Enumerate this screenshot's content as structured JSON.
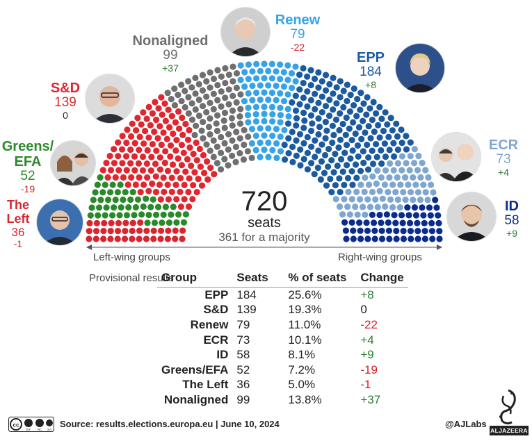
{
  "chart_data": {
    "type": "parliament",
    "total_seats": 720,
    "total_label": "720",
    "seats_label": "seats",
    "majority_label": "361 for a majority",
    "left_label": "Left-wing groups",
    "right_label": "Right-wing groups",
    "groups_ordered_left_to_right": [
      {
        "name": "The Left",
        "seats": 36,
        "change": "-1",
        "color": "#d7262f"
      },
      {
        "name": "Greens/EFA",
        "seats": 52,
        "change": "-19",
        "color": "#2a8a2a"
      },
      {
        "name": "S&D",
        "seats": 139,
        "change": "0",
        "color": "#e0262f"
      },
      {
        "name": "Nonaligned",
        "seats": 99,
        "change": "+37",
        "color": "#6f6f6f"
      },
      {
        "name": "Renew",
        "seats": 79,
        "change": "-22",
        "color": "#37a3e6"
      },
      {
        "name": "EPP",
        "seats": 184,
        "change": "+8",
        "color": "#1c5aa0"
      },
      {
        "name": "ECR",
        "seats": 73,
        "change": "+4",
        "color": "#7ea6cf"
      },
      {
        "name": "ID",
        "seats": 58,
        "change": "+9",
        "color": "#0a2c8c"
      }
    ]
  },
  "labels": {
    "nonaligned": {
      "name": "Nonaligned",
      "seats": "99",
      "change": "+37"
    },
    "renew": {
      "name": "Renew",
      "seats": "79",
      "change": "-22"
    },
    "epp": {
      "name": "EPP",
      "seats": "184",
      "change": "+8"
    },
    "sd": {
      "name": "S&D",
      "seats": "139",
      "change": "0"
    },
    "greens_1": "Greens/",
    "greens_2": "EFA",
    "greens_seats": "52",
    "greens_change": "-19",
    "left_1": "The",
    "left_2": "Left",
    "left_seats": "36",
    "left_change": "-1",
    "ecr": {
      "name": "ECR",
      "seats": "73",
      "change": "+4"
    },
    "id": {
      "name": "ID",
      "seats": "58",
      "change": "+9"
    }
  },
  "table": {
    "caption": "Provisional results",
    "headers": [
      "Group",
      "Seats",
      "% of seats",
      "Change"
    ],
    "rows": [
      {
        "group": "EPP",
        "seats": "184",
        "pct": "25.6%",
        "change": "+8",
        "tone": "pos"
      },
      {
        "group": "S&D",
        "seats": "139",
        "pct": "19.3%",
        "change": "0",
        "tone": "zero"
      },
      {
        "group": "Renew",
        "seats": "79",
        "pct": "11.0%",
        "change": "-22",
        "tone": "neg"
      },
      {
        "group": "ECR",
        "seats": "73",
        "pct": "10.1%",
        "change": "+4",
        "tone": "pos"
      },
      {
        "group": "ID",
        "seats": "58",
        "pct": "8.1%",
        "change": "+9",
        "tone": "pos"
      },
      {
        "group": "Greens/EFA",
        "seats": "52",
        "pct": "7.2%",
        "change": "-19",
        "tone": "neg"
      },
      {
        "group": "The Left",
        "seats": "36",
        "pct": "5.0%",
        "change": "-1",
        "tone": "neg"
      },
      {
        "group": "Nonaligned",
        "seats": "99",
        "pct": "13.8%",
        "change": "+37",
        "tone": "pos"
      }
    ]
  },
  "footer": {
    "source": "Source: results.elections.europa.eu  |  June 10, 2024",
    "credit": "@AJLabs",
    "logo_text": "ALJAZEERA",
    "license_icon": "cc-by-nc-sa-icon"
  }
}
